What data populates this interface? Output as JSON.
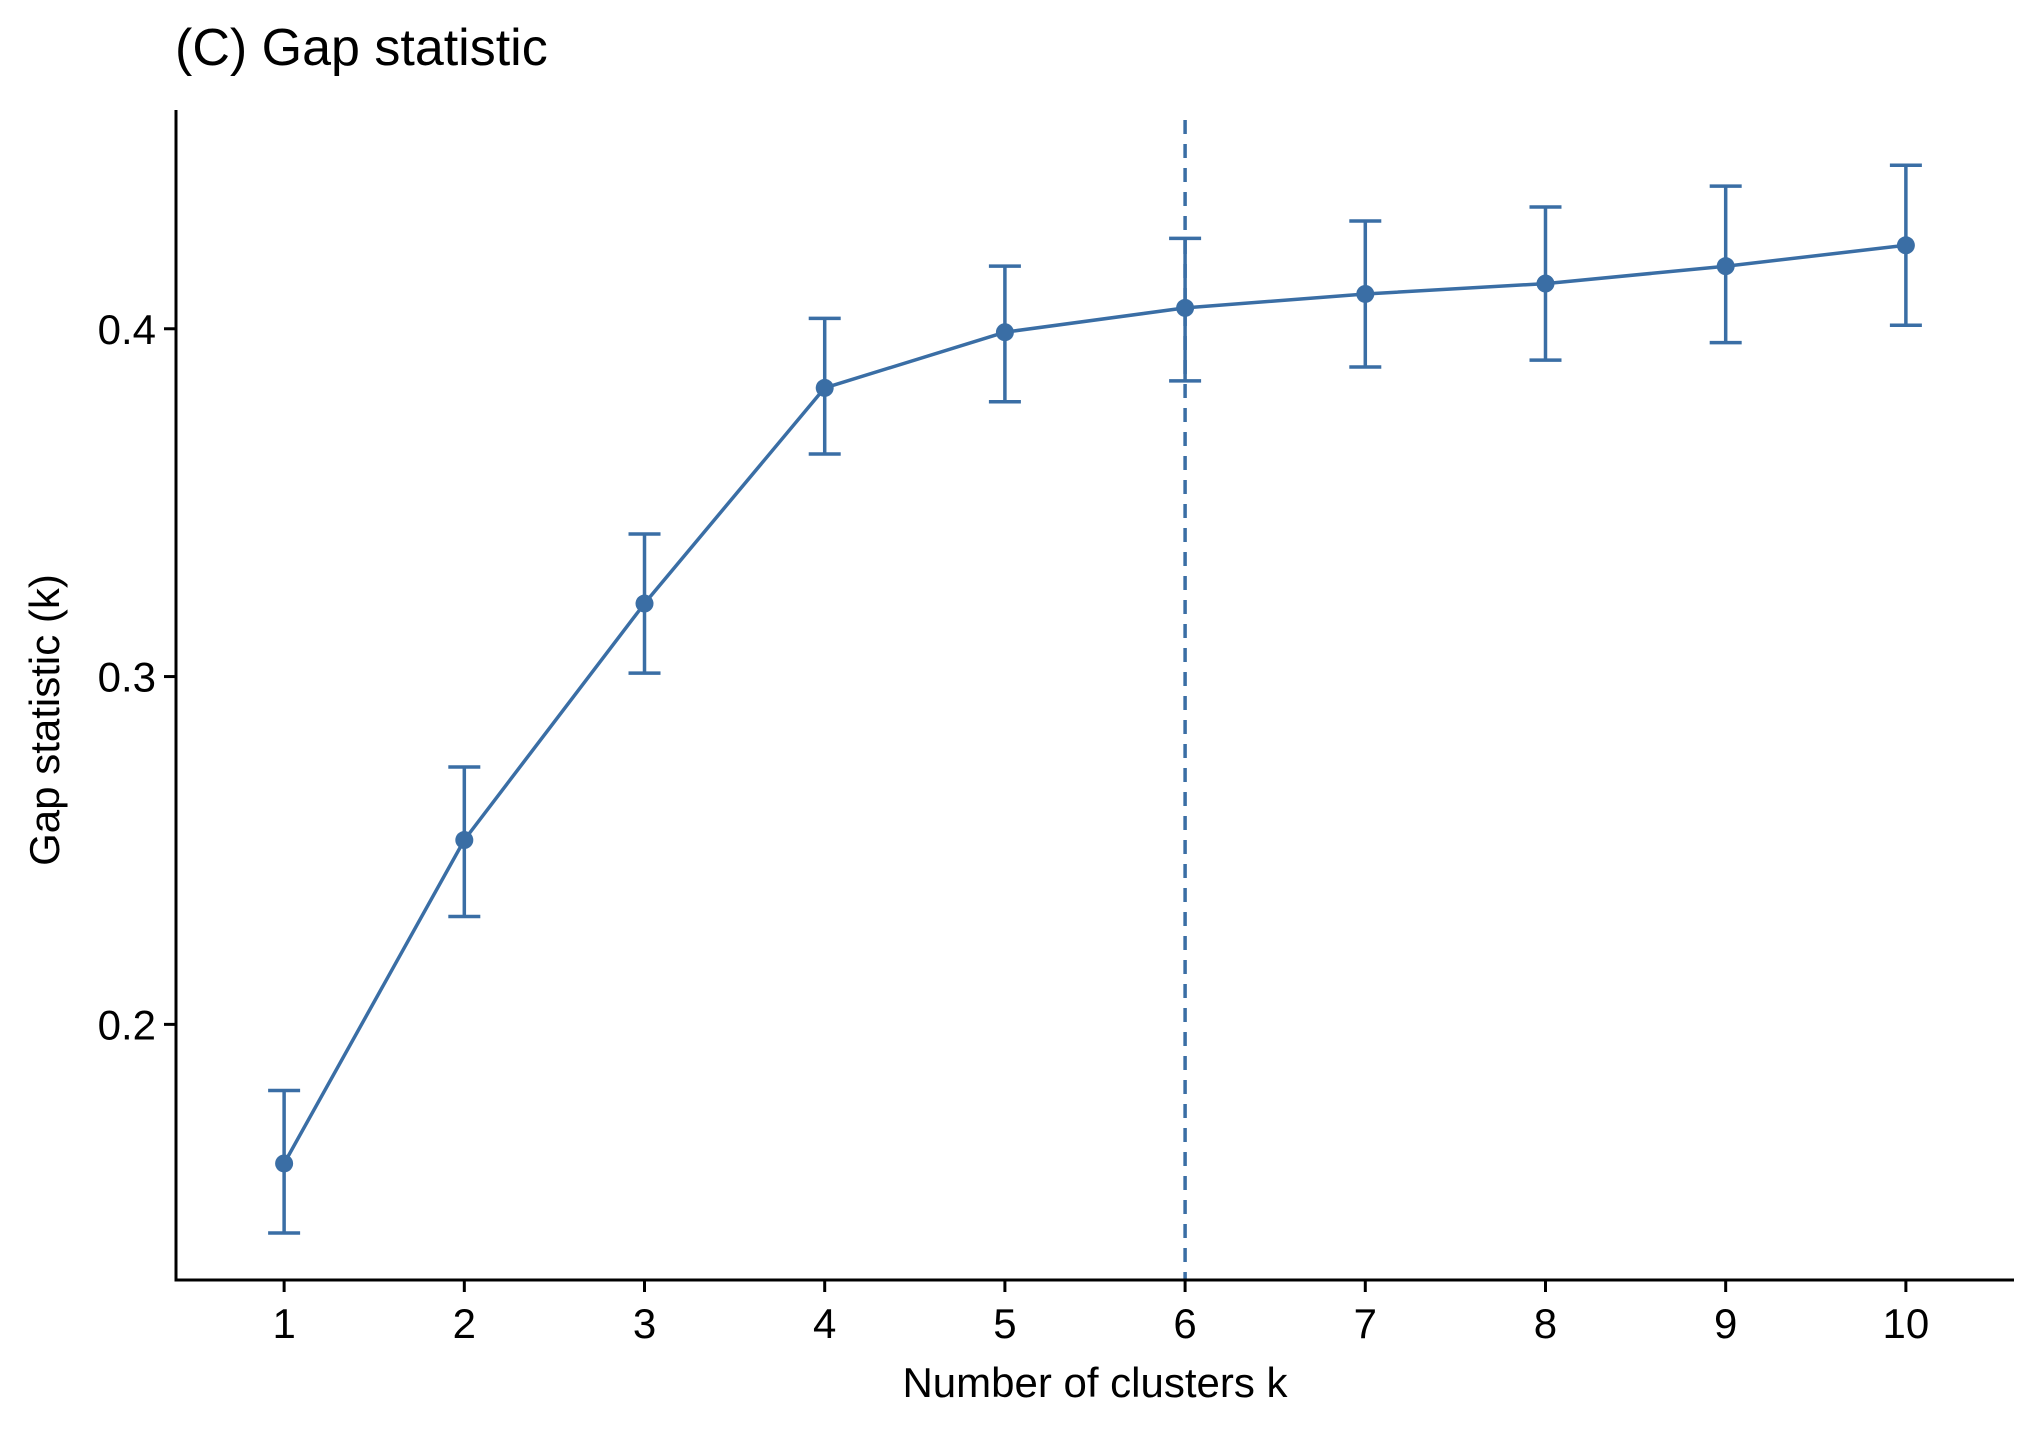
{
  "chart_data": {
    "type": "line",
    "title": "(C) Gap statistic",
    "xlabel": "Number of clusters k",
    "ylabel": "Gap statistic (k)",
    "x": [
      1,
      2,
      3,
      4,
      5,
      6,
      7,
      8,
      9,
      10
    ],
    "x_tick_labels": [
      "1",
      "2",
      "3",
      "4",
      "5",
      "6",
      "7",
      "8",
      "9",
      "10"
    ],
    "y_ticks": [
      0.2,
      0.3,
      0.4
    ],
    "y_tick_labels": [
      "0.2",
      "0.3",
      "0.4"
    ],
    "xlim": [
      0.4,
      10.6
    ],
    "ylim": [
      0.1265,
      0.4629
    ],
    "series": [
      {
        "values": [
          0.16,
          0.253,
          0.321,
          0.383,
          0.399,
          0.406,
          0.41,
          0.413,
          0.418,
          0.424
        ],
        "error_low": [
          0.14,
          0.231,
          0.301,
          0.364,
          0.379,
          0.385,
          0.389,
          0.391,
          0.396,
          0.401
        ],
        "error_high": [
          0.181,
          0.274,
          0.341,
          0.403,
          0.418,
          0.426,
          0.431,
          0.435,
          0.441,
          0.447
        ],
        "color": "#3a6ea5"
      }
    ],
    "vline": {
      "x": 6,
      "style": "dashed",
      "color": "#3a6ea5"
    },
    "grid": false,
    "legend": "none"
  }
}
